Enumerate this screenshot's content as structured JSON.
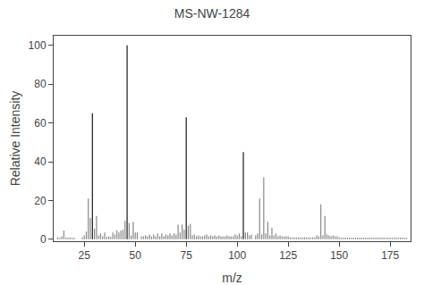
{
  "chart_data": {
    "type": "stem",
    "title": "MS-NW-1284",
    "xlabel": "m/z",
    "ylabel": "Relative Intensity",
    "x": [
      12,
      13,
      14,
      15,
      16,
      17,
      18,
      19,
      20,
      24,
      25,
      26,
      27,
      28,
      29,
      30,
      31,
      32,
      33,
      34,
      35,
      36,
      37,
      38,
      39,
      40,
      41,
      42,
      43,
      44,
      45,
      46,
      47,
      48,
      49,
      50,
      51,
      53,
      54,
      55,
      56,
      57,
      58,
      59,
      60,
      61,
      62,
      63,
      64,
      65,
      66,
      67,
      68,
      69,
      70,
      71,
      72,
      73,
      74,
      75,
      76,
      77,
      78,
      79,
      80,
      81,
      82,
      83,
      84,
      85,
      86,
      87,
      88,
      89,
      90,
      91,
      92,
      93,
      94,
      95,
      96,
      97,
      98,
      99,
      100,
      101,
      102,
      103,
      104,
      105,
      106,
      107,
      109,
      110,
      111,
      112,
      113,
      114,
      115,
      116,
      117,
      118,
      119,
      120,
      121,
      122,
      123,
      124,
      125,
      126,
      127,
      128,
      129,
      130,
      131,
      132,
      133,
      134,
      135,
      136,
      137,
      138,
      139,
      140,
      141,
      142,
      143,
      144,
      145,
      146,
      147,
      148,
      149,
      150,
      151,
      152,
      153,
      154,
      155,
      156,
      157,
      158,
      159,
      160,
      161,
      162,
      163,
      164,
      165,
      166,
      167,
      168,
      169,
      170,
      171,
      172,
      173,
      174,
      175,
      176,
      177,
      178,
      179,
      180,
      181,
      182,
      183
    ],
    "values": [
      1.0,
      0.8,
      1.5,
      4.5,
      0.8,
      0.8,
      1.0,
      0.8,
      0.8,
      1.0,
      2.0,
      4.0,
      21.0,
      11.0,
      65.0,
      5.5,
      12.0,
      2.0,
      3.0,
      1.5,
      3.5,
      1.2,
      1.5,
      1.2,
      3.5,
      2.5,
      4.5,
      3.5,
      4.5,
      5.0,
      9.5,
      100.0,
      8.5,
      2.0,
      9.0,
      3.5,
      3.5,
      1.5,
      1.5,
      2.0,
      1.5,
      2.5,
      1.5,
      2.5,
      1.5,
      3.0,
      1.5,
      3.0,
      1.5,
      2.5,
      2.0,
      3.0,
      2.0,
      3.0,
      2.5,
      7.5,
      3.5,
      7.5,
      5.0,
      63.0,
      7.0,
      8.0,
      2.0,
      2.5,
      1.5,
      2.0,
      1.5,
      1.5,
      2.0,
      2.5,
      1.5,
      2.0,
      1.5,
      2.0,
      1.5,
      2.0,
      1.5,
      1.5,
      1.5,
      2.0,
      1.5,
      1.5,
      1.5,
      2.5,
      2.0,
      3.0,
      1.5,
      45.0,
      3.5,
      3.5,
      2.0,
      2.5,
      2.0,
      3.0,
      21.0,
      2.5,
      32.0,
      3.0,
      9.0,
      2.0,
      6.0,
      2.0,
      3.0,
      1.5,
      2.0,
      1.5,
      1.5,
      1.5,
      1.5,
      1.0,
      1.0,
      1.0,
      1.0,
      1.0,
      1.0,
      1.0,
      1.0,
      1.0,
      1.0,
      0.8,
      1.0,
      1.0,
      2.0,
      1.5,
      18.0,
      2.0,
      12.0,
      2.5,
      2.0,
      1.5,
      2.0,
      1.5,
      1.5,
      1.0,
      0.8,
      0.8,
      0.8,
      0.8,
      0.8,
      0.8,
      0.8,
      0.8,
      0.8,
      0.8,
      0.8,
      0.8,
      0.8,
      0.8,
      0.8,
      0.8,
      0.8,
      0.8,
      0.8,
      0.8,
      0.8,
      0.8,
      0.8,
      0.8,
      0.8,
      0.8,
      0.8,
      0.8,
      0.8,
      0.8,
      0.8,
      0.8,
      0.8
    ],
    "colors": [
      "#888888",
      "#888888",
      "#888888",
      "#888888",
      "#888888",
      "#888888",
      "#888888",
      "#888888",
      "#888888",
      "#888888",
      "#888888",
      "#888888",
      "#888888",
      "#888888",
      "#1a1a1a",
      "#888888",
      "#888888",
      "#888888",
      "#888888",
      "#888888",
      "#888888",
      "#888888",
      "#888888",
      "#888888",
      "#888888",
      "#888888",
      "#888888",
      "#888888",
      "#888888",
      "#888888",
      "#888888",
      "#1a1a1a",
      "#888888",
      "#888888",
      "#888888",
      "#888888",
      "#888888",
      "#888888",
      "#888888",
      "#888888",
      "#888888",
      "#888888",
      "#888888",
      "#888888",
      "#888888",
      "#888888",
      "#888888",
      "#888888",
      "#888888",
      "#888888",
      "#888888",
      "#888888",
      "#888888",
      "#888888",
      "#888888",
      "#888888",
      "#888888",
      "#888888",
      "#888888",
      "#1a1a1a",
      "#888888",
      "#888888",
      "#888888",
      "#888888",
      "#888888",
      "#888888",
      "#888888",
      "#888888",
      "#888888",
      "#888888",
      "#888888",
      "#888888",
      "#888888",
      "#888888",
      "#888888",
      "#888888",
      "#888888",
      "#888888",
      "#888888",
      "#888888",
      "#888888",
      "#888888",
      "#888888",
      "#888888",
      "#888888",
      "#888888",
      "#888888",
      "#1a1a1a",
      "#888888",
      "#888888",
      "#888888",
      "#888888",
      "#888888",
      "#888888",
      "#888888",
      "#888888",
      "#888888",
      "#888888",
      "#888888",
      "#888888",
      "#888888",
      "#888888",
      "#888888",
      "#888888",
      "#888888",
      "#888888",
      "#888888",
      "#888888",
      "#888888",
      "#888888",
      "#888888",
      "#888888",
      "#888888",
      "#888888",
      "#888888",
      "#888888",
      "#888888",
      "#888888",
      "#888888",
      "#888888",
      "#888888",
      "#888888",
      "#888888",
      "#888888",
      "#888888",
      "#888888",
      "#888888",
      "#888888",
      "#888888",
      "#888888",
      "#888888",
      "#888888",
      "#888888",
      "#888888",
      "#888888",
      "#888888",
      "#888888",
      "#888888",
      "#888888",
      "#888888",
      "#888888",
      "#888888",
      "#888888",
      "#888888",
      "#888888",
      "#888888",
      "#888888",
      "#888888",
      "#888888",
      "#888888",
      "#888888",
      "#888888",
      "#888888",
      "#888888",
      "#888888",
      "#888888",
      "#888888",
      "#888888",
      "#888888",
      "#888888",
      "#888888",
      "#888888",
      "#888888",
      "#888888",
      "#888888",
      "#888888",
      "#888888"
    ],
    "xlim": [
      10,
      185
    ],
    "ylim": [
      -1,
      105
    ],
    "xticks": [
      25,
      50,
      75,
      100,
      125,
      150,
      175
    ],
    "yticks": [
      0,
      20,
      40,
      60,
      80,
      100
    ],
    "grid": false
  }
}
